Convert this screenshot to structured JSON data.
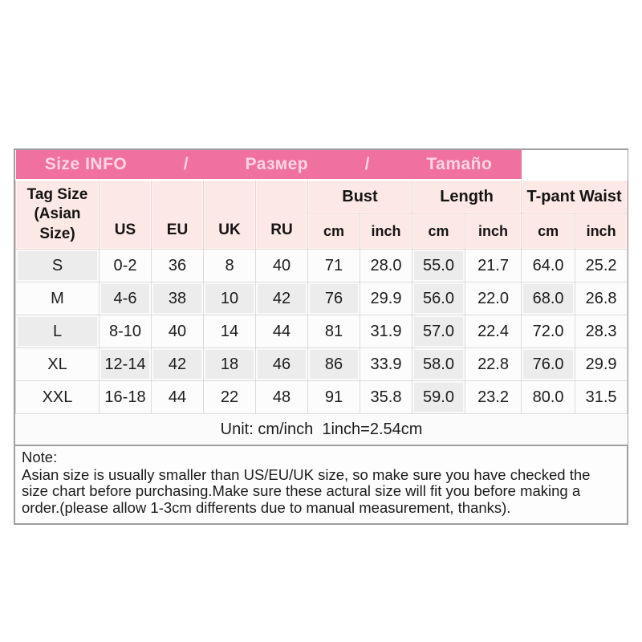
{
  "title_bar": {
    "segments": [
      "Size INFO",
      "/",
      "Размер",
      "/",
      "Tamaño"
    ]
  },
  "header": {
    "tag_size": "Tag Size (Asian Size)",
    "size_columns": [
      "US",
      "EU",
      "UK",
      "RU"
    ],
    "groups": [
      {
        "label": "Bust"
      },
      {
        "label": "Length"
      },
      {
        "label": "T-pant Waist"
      }
    ],
    "unit_labels": [
      "cm",
      "inch",
      "cm",
      "inch",
      "cm",
      "inch"
    ]
  },
  "chart_data": {
    "type": "table",
    "columns": [
      "Tag Size (Asian Size)",
      "US",
      "EU",
      "UK",
      "RU",
      "Bust cm",
      "Bust inch",
      "Length cm",
      "Length inch",
      "T-pant Waist cm",
      "T-pant Waist inch"
    ],
    "rows": [
      [
        "S",
        "0-2",
        "36",
        "8",
        "40",
        "71",
        "28.0",
        "55.0",
        "21.7",
        "64.0",
        "25.2"
      ],
      [
        "M",
        "4-6",
        "38",
        "10",
        "42",
        "76",
        "29.9",
        "56.0",
        "22.0",
        "68.0",
        "26.8"
      ],
      [
        "L",
        "8-10",
        "40",
        "14",
        "44",
        "81",
        "31.9",
        "57.0",
        "22.4",
        "72.0",
        "28.3"
      ],
      [
        "XL",
        "12-14",
        "42",
        "18",
        "46",
        "86",
        "33.9",
        "58.0",
        "22.8",
        "76.0",
        "29.9"
      ],
      [
        "XXL",
        "16-18",
        "44",
        "22",
        "48",
        "91",
        "35.8",
        "59.0",
        "23.2",
        "80.0",
        "31.5"
      ]
    ]
  },
  "footer": {
    "unit_note": "Unit: cm/inch  1inch=2.54cm"
  },
  "note": {
    "title": "Note:",
    "body": "Asian size is usually smaller than US/EU/UK size, so make sure you have checked the size chart before purchasing.Make sure these actural size will fit you before making a order.(please allow 1-3cm differents due to manual measurement, thanks)."
  },
  "colors": {
    "pink_bar": "#f0719f",
    "pink_bar_text": "#ffd6e3",
    "header_pink": "#fce8e4",
    "shaded_cell": "#ececec",
    "cell_border": "#dcdcdc",
    "outer_border": "#9e9e9e",
    "text": "#1c1c1c"
  }
}
